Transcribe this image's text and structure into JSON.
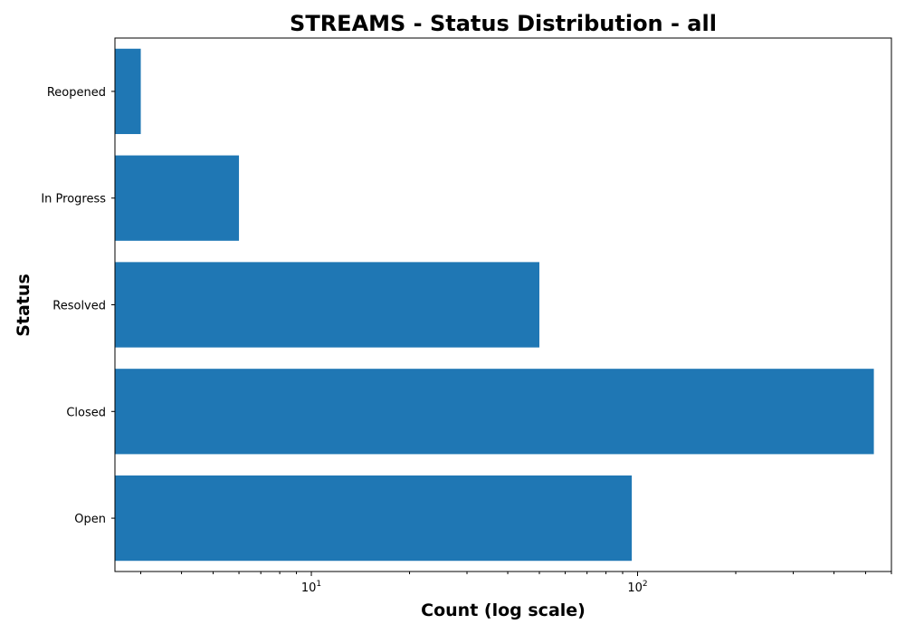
{
  "chart_data": {
    "type": "bar",
    "orientation": "horizontal",
    "title": "STREAMS - Status Distribution - all",
    "xlabel": "Count (log scale)",
    "ylabel": "Status",
    "x_scale": "log",
    "xlim": [
      2.5,
      600
    ],
    "categories": [
      "Open",
      "Closed",
      "Resolved",
      "In Progress",
      "Reopened"
    ],
    "values": [
      96,
      530,
      50,
      6,
      3
    ],
    "x_major_ticks": [
      10,
      100
    ],
    "x_major_tick_labels": [
      "10",
      "100"
    ],
    "bar_color": "#1f77b4",
    "grid": false,
    "legend": "none"
  }
}
